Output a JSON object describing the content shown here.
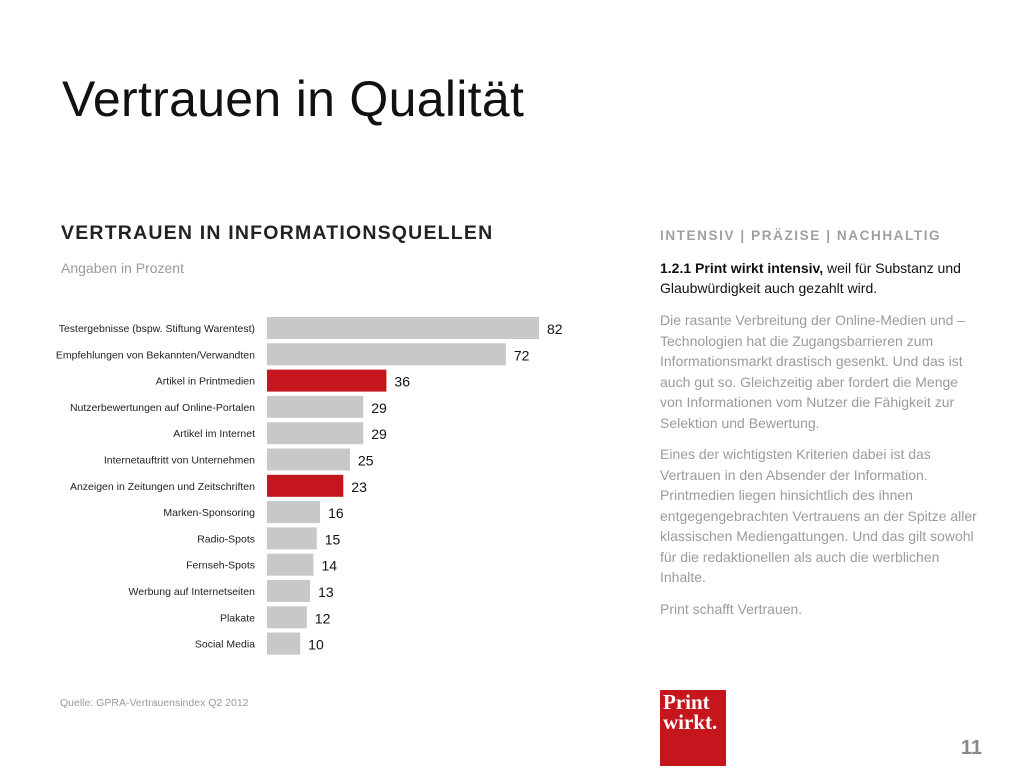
{
  "slide": {
    "title": "Vertrauen in Qualität",
    "page_number": "11"
  },
  "chart_data": {
    "type": "bar",
    "orientation": "horizontal",
    "title": "VERTRAUEN IN INFORMATIONSQUELLEN",
    "subtitle": "Angaben in Prozent",
    "source": "Quelle: GPRA-Vertrauensindex Q2 2012",
    "xlim": [
      0,
      100
    ],
    "grid": false,
    "categories": [
      "Testergebnisse (bspw. Stiftung Warentest)",
      "Empfehlungen von Bekannten/Verwandten",
      "Artikel in Printmedien",
      "Nutzerbewertungen auf Online-Portalen",
      "Artikel im Internet",
      "Internetauftritt von Unternehmen",
      "Anzeigen in Zeitungen und Zeitschriften",
      "Marken-Sponsoring",
      "Radio-Spots",
      "Fernseh-Spots",
      "Werbung auf Internetseiten",
      "Plakate",
      "Social Media"
    ],
    "values": [
      82,
      72,
      36,
      29,
      29,
      25,
      23,
      16,
      15,
      14,
      13,
      12,
      10
    ],
    "highlighted": [
      false,
      false,
      true,
      false,
      false,
      false,
      true,
      false,
      false,
      false,
      false,
      false,
      false
    ],
    "colors": {
      "default": "#c8c8c8",
      "highlight": "#c4161c"
    }
  },
  "sidebar": {
    "tagline": "INTENSIV | PRÄZISE | NACHHALTIG",
    "lead_bold": "1.2.1 Print wirkt intensiv,",
    "lead_rest": " weil für Substanz und Glaubwürdigkeit auch gezahlt wird.",
    "paragraphs": [
      "Die rasante Verbreitung der Online-Medien und –Technologien hat die Zugangsbarrieren zum Informationsmarkt drastisch gesenkt. Und das ist auch gut so. Gleichzeitig aber fordert die Menge von Informationen vom Nutzer die Fähigkeit zur Selektion und Bewertung.",
      "Eines der wichtigsten Kriterien dabei ist das Vertrauen in den Absender der Information. Printmedien liegen hinsichtlich des ihnen entgegengebrachten Vertrauens an der Spitze aller klassischen Mediengattungen. Und das gilt sowohl für die redaktionellen als auch die werblichen Inhalte.",
      "Print schafft Vertrauen."
    ]
  },
  "logo": {
    "line1": "Print",
    "line2": "wirkt.",
    "color": "#c4161c"
  }
}
